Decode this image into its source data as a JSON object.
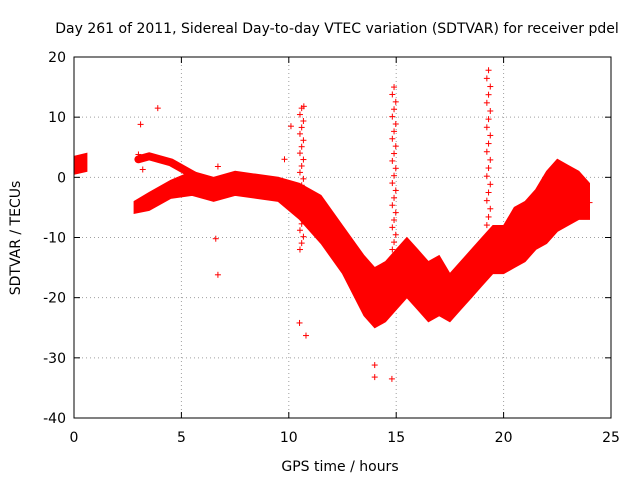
{
  "chart_data": {
    "type": "scatter",
    "title": "Day 261 of 2011, Sidereal Day-to-day VTEC variation (SDTVAR) for receiver pdel",
    "xlabel": "GPS time / hours",
    "ylabel": "SDTVAR / TECUs",
    "xlim": [
      0,
      25
    ],
    "ylim": [
      -40,
      20
    ],
    "xticks": [
      0,
      5,
      10,
      15,
      20,
      25
    ],
    "yticks": [
      -40,
      -30,
      -20,
      -10,
      0,
      10,
      20
    ],
    "grid": true,
    "marker": "+",
    "color": "#ff0000",
    "series": [
      {
        "name": "pdel",
        "band_centerline": [
          [
            0.0,
            2
          ],
          [
            0.6,
            2.5
          ],
          [
            2.8,
            -5
          ],
          [
            3.5,
            -4
          ],
          [
            4.5,
            -2
          ],
          [
            5.5,
            -1
          ],
          [
            6.5,
            -2
          ],
          [
            7.5,
            -1
          ],
          [
            8.5,
            -1.5
          ],
          [
            9.5,
            -2
          ],
          [
            10.5,
            -4
          ],
          [
            11.5,
            -7
          ],
          [
            12.5,
            -12
          ],
          [
            13.5,
            -18
          ],
          [
            14.0,
            -20
          ],
          [
            14.5,
            -19
          ],
          [
            15.0,
            -17
          ],
          [
            15.5,
            -15
          ],
          [
            16.0,
            -17
          ],
          [
            16.5,
            -19
          ],
          [
            17.0,
            -18
          ],
          [
            17.5,
            -20
          ],
          [
            18.0,
            -18
          ],
          [
            18.5,
            -16
          ],
          [
            19.0,
            -14
          ],
          [
            19.5,
            -12
          ],
          [
            20.0,
            -12
          ],
          [
            20.5,
            -10
          ],
          [
            21.0,
            -9
          ],
          [
            21.5,
            -7
          ],
          [
            22.0,
            -5
          ],
          [
            22.5,
            -3
          ],
          [
            23.0,
            -3
          ],
          [
            23.5,
            -3
          ],
          [
            24.0,
            -4
          ]
        ],
        "band_halfwidth": [
          1.5,
          1.5,
          1,
          1.5,
          1.5,
          2,
          2,
          2,
          2,
          2,
          3,
          4,
          4,
          5,
          5,
          5,
          5,
          5,
          5,
          5,
          5,
          4,
          4,
          4,
          4,
          4,
          4,
          5,
          5,
          5,
          6,
          6,
          5,
          4,
          3
        ],
        "upper_arc": [
          [
            3.0,
            3
          ],
          [
            3.5,
            3.5
          ],
          [
            4.0,
            3
          ],
          [
            4.5,
            2.5
          ],
          [
            5.0,
            1.5
          ],
          [
            5.5,
            0.5
          ],
          [
            6.0,
            -0.5
          ],
          [
            6.5,
            -1
          ],
          [
            7.0,
            -1.5
          ]
        ],
        "spikes": [
          [
            10.6,
            11.5
          ],
          [
            14.9,
            15
          ],
          [
            19.3,
            17.8
          ]
        ],
        "outliers": [
          [
            3.9,
            11.5
          ],
          [
            3.1,
            8.8
          ],
          [
            10.1,
            8.5
          ],
          [
            3.0,
            3.8
          ],
          [
            3.2,
            1.3
          ],
          [
            6.7,
            1.8
          ],
          [
            9.8,
            3.0
          ],
          [
            10.7,
            11.8
          ],
          [
            6.6,
            -10.2
          ],
          [
            6.7,
            -16.2
          ],
          [
            10.5,
            -24.2
          ],
          [
            10.8,
            -26.3
          ],
          [
            14.0,
            -33.2
          ],
          [
            14.8,
            -33.5
          ],
          [
            14.0,
            -31.2
          ],
          [
            24.0,
            -4.2
          ]
        ]
      }
    ]
  }
}
